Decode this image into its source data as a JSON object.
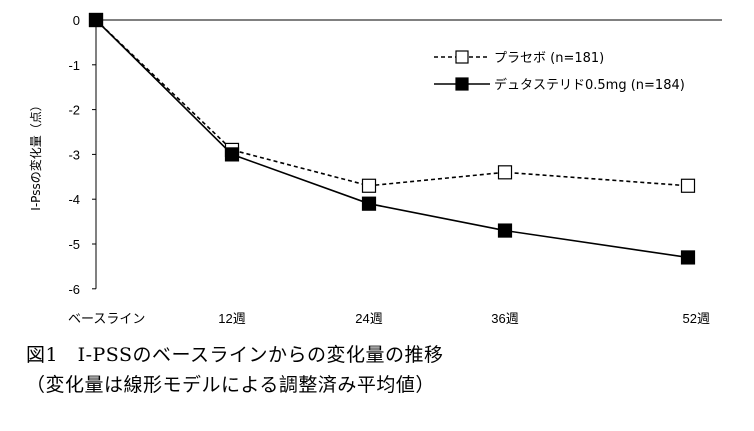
{
  "chart_data": {
    "type": "line",
    "ylabel": "I-Pssの変化量（点）",
    "xlabel": "",
    "categories": [
      "ベースライン",
      "12週",
      "24週",
      "36週",
      "52週"
    ],
    "ylim": [
      -6,
      0
    ],
    "yticks": [
      "0",
      "-1",
      "-2",
      "-3",
      "-4",
      "-5",
      "-6"
    ],
    "series": [
      {
        "name": "プラセボ (n=181)",
        "values": [
          0,
          -2.9,
          -3.7,
          -3.4,
          -3.7
        ],
        "marker": "open-square",
        "line": "dashed"
      },
      {
        "name": "デュタステリド0.5mg (n=184)",
        "values": [
          0,
          -3.0,
          -4.1,
          -4.7,
          -5.3
        ],
        "marker": "filled-square",
        "line": "solid"
      }
    ],
    "legend": "top-right",
    "grid": false
  },
  "caption": {
    "line1": "図1　I-PSSのベースラインからの変化量の推移",
    "line2": "（変化量は線形モデルによる調整済み平均値）"
  }
}
